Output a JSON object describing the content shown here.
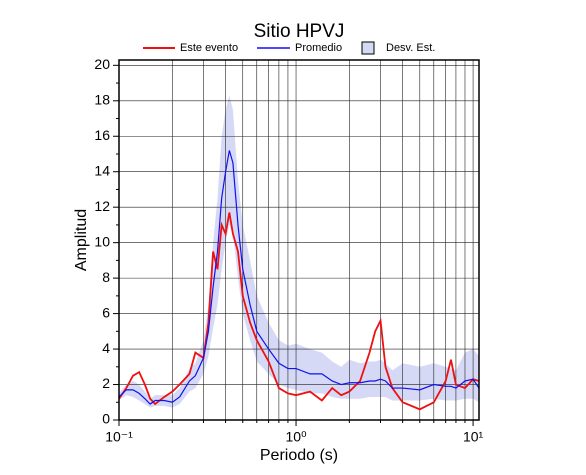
{
  "chart_data": {
    "type": "line",
    "title": "Sitio HPVJ",
    "x_label": "Periodo (s)",
    "y_label": "Amplitud",
    "xscale": "log",
    "grid": true,
    "xlim": [
      0.1,
      10.8
    ],
    "ylim": [
      0,
      20.3
    ],
    "xticks": [
      {
        "value": 0.1,
        "label": "10⁻¹"
      },
      {
        "value": 1,
        "label": "10⁰"
      },
      {
        "value": 10,
        "label": "10¹"
      }
    ],
    "xminor": [
      0.2,
      0.3,
      0.4,
      0.5,
      0.6,
      0.7,
      0.8,
      0.9,
      2,
      3,
      4,
      5,
      6,
      7,
      8,
      9
    ],
    "yticks": [
      0,
      2,
      4,
      6,
      8,
      10,
      12,
      14,
      16,
      18,
      20
    ],
    "yminor": [
      1,
      3,
      5,
      7,
      9,
      11,
      13,
      15,
      17,
      19
    ],
    "x": [
      0.1,
      0.11,
      0.12,
      0.13,
      0.14,
      0.15,
      0.16,
      0.18,
      0.2,
      0.22,
      0.25,
      0.27,
      0.3,
      0.32,
      0.34,
      0.36,
      0.38,
      0.4,
      0.42,
      0.44,
      0.47,
      0.5,
      0.55,
      0.6,
      0.7,
      0.8,
      0.9,
      1.0,
      1.2,
      1.4,
      1.6,
      1.8,
      2.0,
      2.3,
      2.6,
      2.8,
      3.0,
      3.2,
      3.5,
      4.0,
      5.0,
      6.0,
      7.0,
      7.5,
      8.0,
      9.0,
      10.0,
      10.8
    ],
    "band": {
      "name": "Desv. Est.",
      "color": "#d6d9f6",
      "upper": [
        1.5,
        2.0,
        2.2,
        2.0,
        1.6,
        1.2,
        1.4,
        1.4,
        1.4,
        1.8,
        2.9,
        3.2,
        4.5,
        6.5,
        10,
        12.5,
        16,
        17.5,
        18.3,
        17.5,
        13.5,
        11,
        9,
        7,
        5.5,
        4.5,
        4.2,
        4.3,
        4.0,
        3.8,
        3.3,
        3.0,
        3.4,
        3.2,
        3.3,
        3.3,
        3.4,
        3.2,
        2.8,
        3.2,
        3.0,
        3.2,
        3.0,
        2.9,
        2.8,
        3.8,
        4.0,
        3.6
      ],
      "lower": [
        1.1,
        1.4,
        1.3,
        1.1,
        0.9,
        0.7,
        0.8,
        0.8,
        0.7,
        0.9,
        1.6,
        1.8,
        2.6,
        3.6,
        5.2,
        6.5,
        8.5,
        10,
        11,
        10.5,
        8,
        6,
        4.5,
        3.3,
        2.6,
        2.0,
        1.8,
        1.7,
        1.5,
        1.5,
        1.3,
        1.2,
        1.2,
        1.2,
        1.3,
        1.3,
        1.3,
        1.3,
        1.1,
        1.1,
        1.1,
        1.2,
        1.1,
        1.1,
        1.1,
        1.2,
        1.2,
        1.0
      ]
    },
    "series": [
      {
        "name": "Este evento",
        "color": "#ee1111",
        "values": [
          1.2,
          1.8,
          2.5,
          2.7,
          2.0,
          1.2,
          0.9,
          1.3,
          1.6,
          2.0,
          2.6,
          3.8,
          3.5,
          5.5,
          9.5,
          8.5,
          11,
          10.5,
          11.7,
          10.5,
          9.5,
          7,
          5.5,
          4.5,
          3.3,
          1.8,
          1.5,
          1.4,
          1.6,
          1.1,
          1.8,
          1.4,
          1.6,
          2.2,
          3.8,
          5,
          5.6,
          3.0,
          1.8,
          1.0,
          0.6,
          1.0,
          2.2,
          3.4,
          2.0,
          1.8,
          2.3,
          2.2
        ]
      },
      {
        "name": "Promedio",
        "color": "#1111ee",
        "values": [
          1.3,
          1.7,
          1.7,
          1.5,
          1.2,
          0.9,
          1.1,
          1.1,
          1.0,
          1.3,
          2.2,
          2.5,
          3.5,
          5,
          7.5,
          9.5,
          12.5,
          14,
          15.2,
          14.5,
          11,
          8.5,
          6.5,
          5,
          4,
          3.2,
          2.9,
          2.9,
          2.6,
          2.6,
          2.2,
          2.0,
          2.1,
          2.1,
          2.2,
          2.2,
          2.3,
          2.2,
          1.8,
          1.8,
          1.7,
          2.0,
          1.9,
          1.9,
          1.8,
          2.2,
          2.3,
          1.8
        ]
      }
    ]
  }
}
